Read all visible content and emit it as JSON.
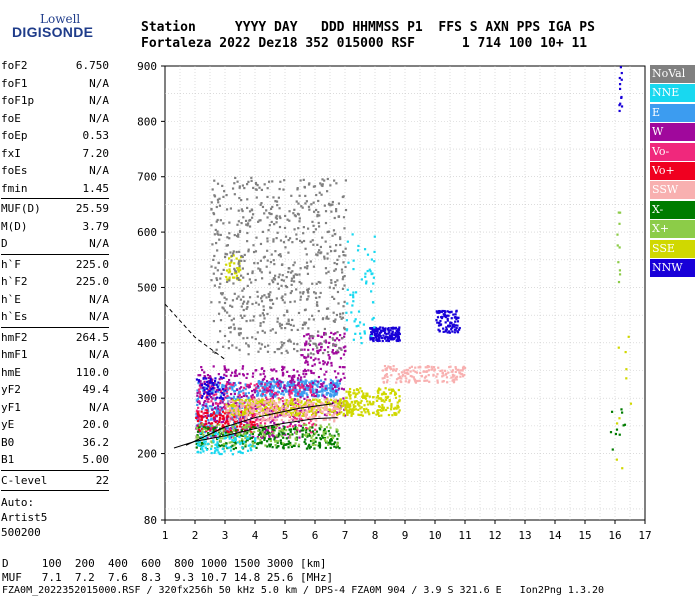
{
  "header": {
    "logo_top": "Lowell",
    "logo_bottom": "DIGISONDE",
    "line1": "Station     YYYY DAY   DDD HHMMSS P1  FFS S AXN PPS IGA PS",
    "line2": "Fortaleza 2022 Dez18 352 015000 RSF      1 714 100 10+ 11"
  },
  "params_groups": [
    [
      [
        "foF2",
        "6.750"
      ],
      [
        "foF1",
        "N/A"
      ],
      [
        "foF1p",
        "N/A"
      ],
      [
        "foE",
        "N/A"
      ],
      [
        "foEp",
        "0.53"
      ],
      [
        "fxI",
        "7.20"
      ],
      [
        "foEs",
        "N/A"
      ],
      [
        "fmin",
        "1.45"
      ]
    ],
    [
      [
        "MUF(D)",
        "25.59"
      ],
      [
        "M(D)",
        "3.79"
      ],
      [
        "D",
        "N/A"
      ]
    ],
    [
      [
        "h`F",
        "225.0"
      ],
      [
        "h`F2",
        "225.0"
      ],
      [
        "h`E",
        "N/A"
      ],
      [
        "h`Es",
        "N/A"
      ]
    ],
    [
      [
        "hmF2",
        "264.5"
      ],
      [
        "hmF1",
        "N/A"
      ],
      [
        "hmE",
        "110.0"
      ],
      [
        "yF2",
        "49.4"
      ],
      [
        "yF1",
        "N/A"
      ],
      [
        "yE",
        "20.0"
      ],
      [
        "B0",
        "36.2"
      ],
      [
        "B1",
        "5.00"
      ]
    ],
    [
      [
        "C-level",
        "22"
      ]
    ]
  ],
  "auto": {
    "line1": "Auto:",
    "line2": "Artist5",
    "line3": "500200"
  },
  "legend": [
    {
      "label": "NoVal",
      "color": "#808080"
    },
    {
      "label": "NNE",
      "color": "#18d8f0"
    },
    {
      "label": "E",
      "color": "#3c9cf0"
    },
    {
      "label": "W",
      "color": "#a0089c"
    },
    {
      "label": "Vo-",
      "color": "#f0287c"
    },
    {
      "label": "Vo+",
      "color": "#f00020"
    },
    {
      "label": "SSW",
      "color": "#f8b0b0"
    },
    {
      "label": "X-",
      "color": "#007c00"
    },
    {
      "label": "X+",
      "color": "#8ccc48"
    },
    {
      "label": "SSE",
      "color": "#d0d800"
    },
    {
      "label": "NNW",
      "color": "#1800d8"
    }
  ],
  "footer": {
    "line1": "D     100  200  400  600  800 1000 1500 3000 [km]",
    "line2": "MUF   7.1  7.2  7.6  8.3  9.3 10.7 14.8 25.6 [MHz]",
    "line3": "FZA0M_2022352015000.RSF / 320fx256h 50 kHz 5.0 km / DPS-4 FZA0M 904 / 3.9 S 321.6 E   Ion2Png 1.3.20"
  },
  "chart_data": {
    "type": "scatter",
    "xlim": [
      1,
      17
    ],
    "ylim": [
      80,
      900
    ],
    "x_ticks": [
      1,
      2,
      3,
      4,
      5,
      6,
      7,
      8,
      9,
      10,
      11,
      12,
      13,
      14,
      15,
      16,
      17
    ],
    "y_ticks": [
      80,
      200,
      300,
      400,
      500,
      600,
      700,
      800,
      900
    ],
    "grid": true,
    "clusters": [
      {
        "color": "#3c9cf0",
        "x": [
          2.0,
          3.8
        ],
        "y": [
          240,
          330
        ],
        "n": 260
      },
      {
        "color": "#3c9cf0",
        "x": [
          4.0,
          6.8
        ],
        "y": [
          305,
          335
        ],
        "n": 320
      },
      {
        "color": "#a0089c",
        "x": [
          2.0,
          5.5
        ],
        "y": [
          230,
          360
        ],
        "n": 420
      },
      {
        "color": "#a0089c",
        "x": [
          5.5,
          7.0
        ],
        "y": [
          270,
          420
        ],
        "n": 200
      },
      {
        "color": "#f0287c",
        "x": [
          2.0,
          6.0
        ],
        "y": [
          240,
          330
        ],
        "n": 220
      },
      {
        "color": "#f00020",
        "x": [
          2.0,
          4.0
        ],
        "y": [
          240,
          280
        ],
        "n": 120
      },
      {
        "color": "#d0d800",
        "x": [
          3.0,
          7.2
        ],
        "y": [
          270,
          300
        ],
        "n": 320
      },
      {
        "color": "#d0d800",
        "x": [
          7.0,
          8.8
        ],
        "y": [
          270,
          320
        ],
        "n": 200
      },
      {
        "color": "#d0d800",
        "x": [
          3.0,
          3.5
        ],
        "y": [
          510,
          560
        ],
        "n": 40
      },
      {
        "color": "#f8b0b0",
        "x": [
          3.0,
          6.8
        ],
        "y": [
          260,
          300
        ],
        "n": 220
      },
      {
        "color": "#f8b0b0",
        "x": [
          8.2,
          11.0
        ],
        "y": [
          330,
          360
        ],
        "n": 160
      },
      {
        "color": "#007c00",
        "x": [
          2.0,
          6.8
        ],
        "y": [
          210,
          250
        ],
        "n": 260
      },
      {
        "color": "#8ccc48",
        "x": [
          2.0,
          6.8
        ],
        "y": [
          215,
          255
        ],
        "n": 160
      },
      {
        "color": "#1800d8",
        "x": [
          7.8,
          8.8
        ],
        "y": [
          405,
          430
        ],
        "n": 160
      },
      {
        "color": "#1800d8",
        "x": [
          10.0,
          10.8
        ],
        "y": [
          420,
          460
        ],
        "n": 90
      },
      {
        "color": "#1800d8",
        "x": [
          2.0,
          3.0
        ],
        "y": [
          300,
          340
        ],
        "n": 50
      },
      {
        "color": "#18d8f0",
        "x": [
          2.0,
          4.0
        ],
        "y": [
          200,
          240
        ],
        "n": 90
      },
      {
        "color": "#18d8f0",
        "x": [
          7.0,
          8.0
        ],
        "y": [
          400,
          600
        ],
        "n": 60
      },
      {
        "color": "#808080",
        "x": [
          2.5,
          7.0
        ],
        "y": [
          380,
          700
        ],
        "n": 700
      },
      {
        "color": "#1800d8",
        "x": [
          16.1,
          16.2
        ],
        "y": [
          820,
          900
        ],
        "n": 12
      },
      {
        "color": "#8ccc48",
        "x": [
          16.0,
          16.2
        ],
        "y": [
          500,
          640
        ],
        "n": 10
      },
      {
        "color": "#007c00",
        "x": [
          15.8,
          16.3
        ],
        "y": [
          200,
          300
        ],
        "n": 10
      },
      {
        "color": "#d0d800",
        "x": [
          16.0,
          16.5
        ],
        "y": [
          140,
          420
        ],
        "n": 10
      }
    ],
    "curves": [
      {
        "style": "solid",
        "points": [
          [
            1.3,
            210
          ],
          [
            2.0,
            222
          ],
          [
            3.0,
            232
          ],
          [
            4.0,
            245
          ],
          [
            5.0,
            255
          ],
          [
            6.0,
            263
          ],
          [
            6.75,
            265
          ]
        ]
      },
      {
        "style": "dashed",
        "points": [
          [
            1.0,
            470
          ],
          [
            1.5,
            440
          ],
          [
            2.0,
            410
          ],
          [
            2.5,
            390
          ],
          [
            3.0,
            370
          ]
        ]
      },
      {
        "style": "solid",
        "points": [
          [
            1.7,
            215
          ],
          [
            3.0,
            248
          ],
          [
            4.0,
            265
          ],
          [
            5.5,
            282
          ],
          [
            6.6,
            290
          ]
        ]
      }
    ]
  }
}
